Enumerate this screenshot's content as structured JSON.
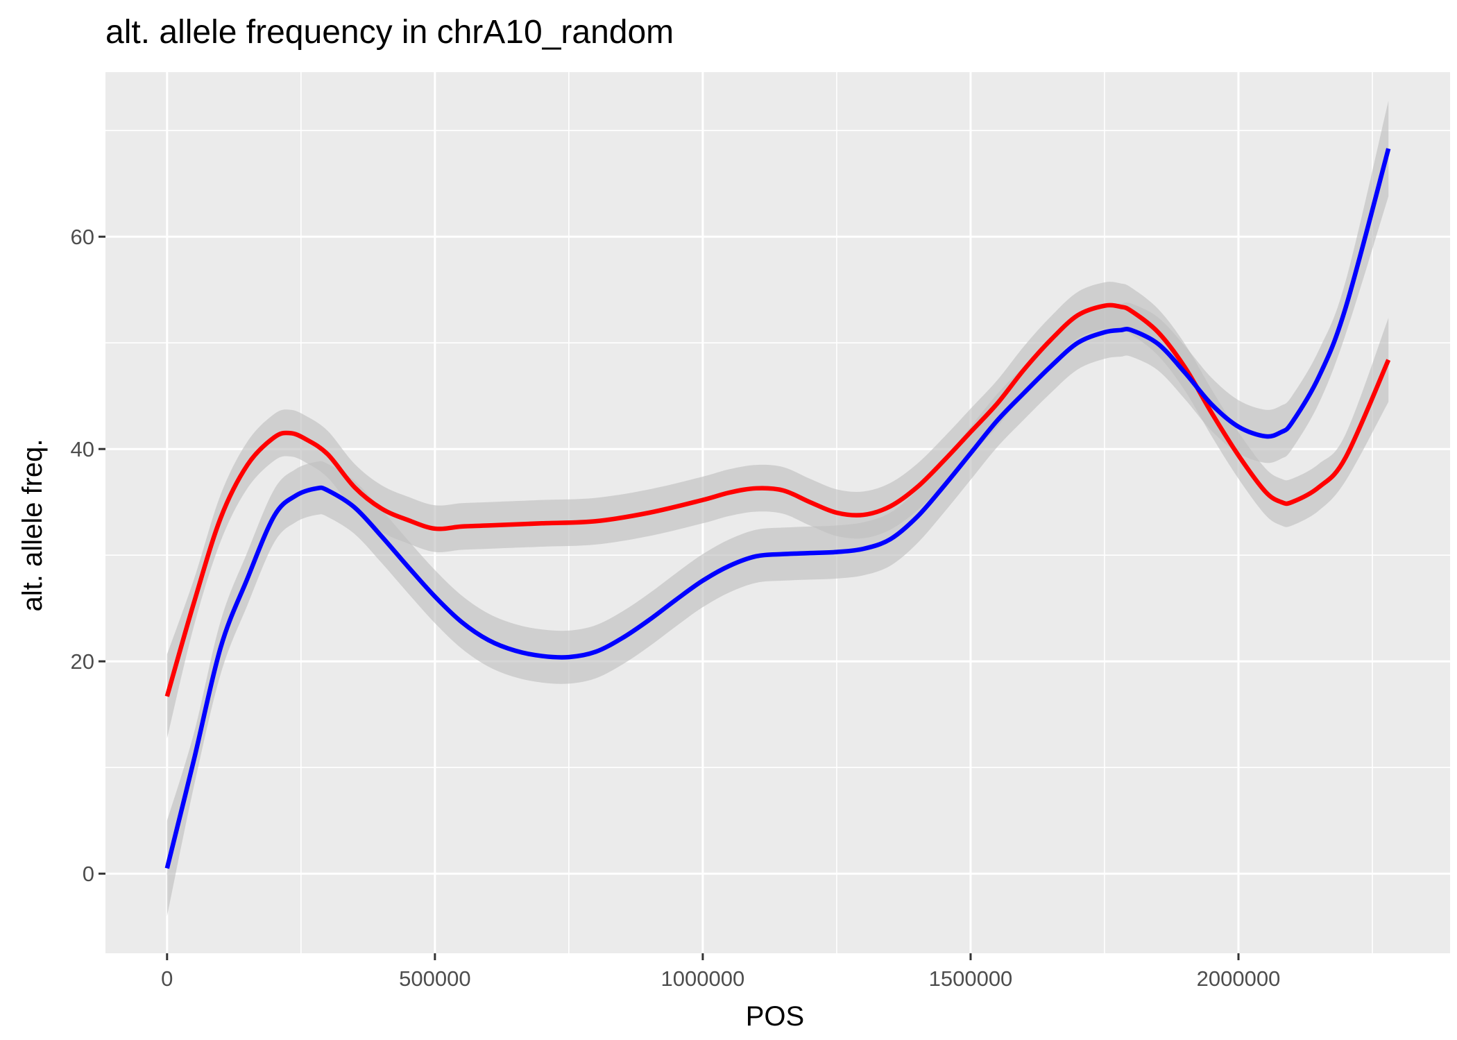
{
  "chart_data": {
    "type": "line",
    "title": "alt. allele frequency in chrA10_random",
    "xlabel": "POS",
    "ylabel": "alt. allele freq.",
    "xlim": [
      -115000,
      2395000
    ],
    "ylim": [
      -7.5,
      75.5
    ],
    "x_ticks": [
      0,
      500000,
      1000000,
      1500000,
      2000000
    ],
    "x_tick_labels": [
      "0",
      "500000",
      "1000000",
      "1500000",
      "2000000"
    ],
    "y_ticks": [
      0,
      20,
      40,
      60
    ],
    "y_tick_labels": [
      "0",
      "20",
      "40",
      "60"
    ],
    "grid": true,
    "legend": "none",
    "colors": {
      "panel_background": "#EBEBEB",
      "grid_line": "#FFFFFF",
      "confidence_band": "#BEBEBE",
      "series_red": "#FF0000",
      "series_blue": "#0000FF"
    },
    "series": [
      {
        "color": "#FF0000",
        "x": [
          0,
          50000,
          100000,
          150000,
          200000,
          230000,
          260000,
          300000,
          350000,
          400000,
          450000,
          500000,
          550000,
          600000,
          700000,
          800000,
          900000,
          1000000,
          1050000,
          1100000,
          1150000,
          1200000,
          1250000,
          1300000,
          1350000,
          1400000,
          1450000,
          1500000,
          1550000,
          1600000,
          1650000,
          1700000,
          1750000,
          1780000,
          1800000,
          1850000,
          1900000,
          1950000,
          2000000,
          2050000,
          2080000,
          2100000,
          2150000,
          2200000,
          2280000
        ],
        "y": [
          16.7,
          25.5,
          33.5,
          38.5,
          41.1,
          41.5,
          40.9,
          39.5,
          36.4,
          34.4,
          33.3,
          32.5,
          32.7,
          32.8,
          33.0,
          33.2,
          34.0,
          35.2,
          35.9,
          36.3,
          36.1,
          35.0,
          34.0,
          33.8,
          34.6,
          36.4,
          38.9,
          41.6,
          44.3,
          47.5,
          50.3,
          52.6,
          53.5,
          53.4,
          53.0,
          51.0,
          47.7,
          43.4,
          39.4,
          36.0,
          35.0,
          35.0,
          36.4,
          39.2,
          48.4
        ],
        "band": 2.2
      },
      {
        "color": "#0000FF",
        "x": [
          0,
          50000,
          100000,
          150000,
          200000,
          240000,
          280000,
          300000,
          350000,
          400000,
          450000,
          500000,
          550000,
          600000,
          650000,
          700000,
          750000,
          800000,
          850000,
          900000,
          950000,
          1000000,
          1050000,
          1100000,
          1150000,
          1200000,
          1250000,
          1300000,
          1350000,
          1400000,
          1450000,
          1500000,
          1550000,
          1600000,
          1650000,
          1700000,
          1750000,
          1780000,
          1800000,
          1850000,
          1900000,
          1950000,
          2000000,
          2050000,
          2080000,
          2100000,
          2150000,
          2200000,
          2280000
        ],
        "y": [
          0.5,
          10.7,
          21.3,
          27.8,
          33.7,
          35.6,
          36.3,
          36.1,
          34.5,
          31.8,
          28.9,
          26.1,
          23.7,
          22.0,
          21.0,
          20.5,
          20.4,
          20.9,
          22.2,
          23.9,
          25.8,
          27.6,
          29.0,
          29.9,
          30.1,
          30.2,
          30.3,
          30.6,
          31.5,
          33.6,
          36.5,
          39.6,
          42.7,
          45.3,
          47.8,
          50.0,
          51.0,
          51.2,
          51.2,
          49.9,
          47.2,
          44.2,
          42.1,
          41.2,
          41.6,
          42.5,
          46.8,
          53.3,
          68.3
        ],
        "band": 2.5
      }
    ]
  }
}
